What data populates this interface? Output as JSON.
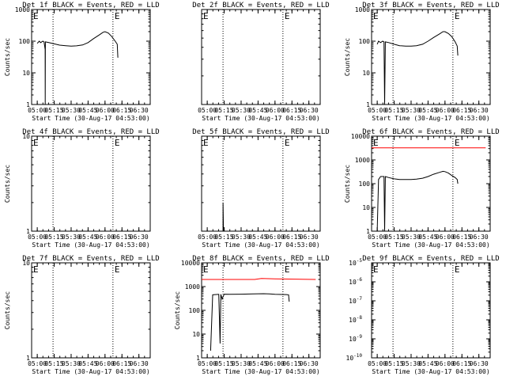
{
  "figure": {
    "xtick_labels": [
      "05:00",
      "05:15",
      "05:30",
      "05:45",
      "06:00",
      "06:15",
      "06:30"
    ]
  },
  "chart_data": [
    {
      "type": "line",
      "title": "Det 1f BLACK = Events, RED = LLD",
      "xlabel": "Start Time (30-Aug-17 04:53:00)",
      "ylabel": "Counts/sec",
      "xlim": [
        4.917,
        6.667
      ],
      "ylog": true,
      "ylim": [
        1,
        1000
      ],
      "ytick_labels": [
        "1",
        "10",
        "100",
        "1000"
      ],
      "events_marker": "E",
      "vlines": [
        5.233,
        6.117
      ],
      "series": [
        {
          "name": "Events",
          "color": "#000000",
          "points": [
            [
              5.0,
              85
            ],
            [
              5.03,
              100
            ],
            [
              5.05,
              90
            ],
            [
              5.083,
              100
            ],
            [
              5.1,
              95
            ],
            [
              5.117,
              55
            ],
            [
              5.118,
              1
            ],
            [
              5.12,
              95
            ],
            [
              5.17,
              90
            ],
            [
              5.25,
              82
            ],
            [
              5.33,
              75
            ],
            [
              5.42,
              72
            ],
            [
              5.5,
              70
            ],
            [
              5.58,
              71
            ],
            [
              5.67,
              76
            ],
            [
              5.75,
              90
            ],
            [
              5.83,
              120
            ],
            [
              5.92,
              160
            ],
            [
              5.97,
              190
            ],
            [
              6.0,
              200
            ],
            [
              6.05,
              180
            ],
            [
              6.1,
              140
            ],
            [
              6.15,
              100
            ],
            [
              6.18,
              80
            ],
            [
              6.19,
              30
            ]
          ]
        }
      ]
    },
    {
      "type": "line",
      "title": "Det 2f BLACK = Events, RED = LLD",
      "xlabel": "Start Time (30-Aug-17 04:53:00)",
      "ylabel": "",
      "xlim": [
        4.917,
        6.667
      ],
      "ylog": true,
      "ylim": [
        1,
        10
      ],
      "ytick_labels": [],
      "events_marker": "E",
      "vlines": [
        5.233,
        6.117
      ],
      "series": []
    },
    {
      "type": "line",
      "title": "Det 3f BLACK = Events, RED = LLD",
      "xlabel": "Start Time (30-Aug-17 04:53:00)",
      "ylabel": "Counts/sec",
      "xlim": [
        4.917,
        6.667
      ],
      "ylog": true,
      "ylim": [
        1,
        1000
      ],
      "ytick_labels": [
        "1",
        "10",
        "100",
        "1000"
      ],
      "events_marker": "E",
      "vlines": [
        5.233,
        6.117
      ],
      "series": [
        {
          "name": "Events",
          "color": "#000000",
          "points": [
            [
              5.0,
              80
            ],
            [
              5.02,
              100
            ],
            [
              5.05,
              90
            ],
            [
              5.08,
              100
            ],
            [
              5.1,
              95
            ],
            [
              5.11,
              1
            ],
            [
              5.12,
              95
            ],
            [
              5.17,
              90
            ],
            [
              5.25,
              80
            ],
            [
              5.33,
              72
            ],
            [
              5.42,
              70
            ],
            [
              5.5,
              70
            ],
            [
              5.58,
              72
            ],
            [
              5.67,
              80
            ],
            [
              5.75,
              100
            ],
            [
              5.83,
              130
            ],
            [
              5.92,
              170
            ],
            [
              5.97,
              200
            ],
            [
              6.0,
              200
            ],
            [
              6.05,
              175
            ],
            [
              6.1,
              140
            ],
            [
              6.15,
              95
            ],
            [
              6.18,
              70
            ],
            [
              6.19,
              35
            ]
          ]
        }
      ]
    },
    {
      "type": "line",
      "title": "Det 4f BLACK = Events, RED = LLD",
      "xlabel": "Start Time (30-Aug-17 04:53:00)",
      "ylabel": "Counts/sec",
      "xlim": [
        4.917,
        6.667
      ],
      "ylog": true,
      "ylim": [
        1,
        10
      ],
      "ytick_labels": [
        "1",
        "10"
      ],
      "events_marker": "E",
      "vlines": [
        5.233,
        6.117
      ],
      "series": []
    },
    {
      "type": "line",
      "title": "Det 5f BLACK = Events, RED = LLD",
      "xlabel": "Start Time (30-Aug-17 04:53:00)",
      "ylabel": "",
      "xlim": [
        4.917,
        6.667
      ],
      "ylog": true,
      "ylim": [
        1,
        10
      ],
      "ytick_labels": [],
      "events_marker": "E",
      "vlines": [
        5.233,
        6.117
      ],
      "series": [
        {
          "name": "Events",
          "color": "#000000",
          "points": [
            [
              5.233,
              1
            ],
            [
              5.233,
              2
            ],
            [
              5.24,
              1
            ]
          ]
        }
      ]
    },
    {
      "type": "line",
      "title": "Det 6f BLACK = Events, RED = LLD",
      "xlabel": "Start Time (30-Aug-17 04:53:00)",
      "ylabel": "Counts/sec",
      "xlim": [
        4.917,
        6.667
      ],
      "ylog": true,
      "ylim": [
        1,
        10000
      ],
      "ytick_labels": [
        "1",
        "10",
        "100",
        "1000",
        "10000"
      ],
      "events_marker": "E",
      "vlines": [
        5.233,
        6.117
      ],
      "series": [
        {
          "name": "LLD",
          "color": "#ff0000",
          "points": [
            [
              4.917,
              3200
            ],
            [
              6.6,
              3200
            ]
          ]
        },
        {
          "name": "Events",
          "color": "#000000",
          "points": [
            [
              5.0,
              1
            ],
            [
              5.02,
              150
            ],
            [
              5.05,
              200
            ],
            [
              5.1,
              200
            ],
            [
              5.11,
              1
            ],
            [
              5.12,
              200
            ],
            [
              5.17,
              180
            ],
            [
              5.25,
              160
            ],
            [
              5.33,
              150
            ],
            [
              5.42,
              150
            ],
            [
              5.5,
              150
            ],
            [
              5.58,
              155
            ],
            [
              5.67,
              170
            ],
            [
              5.75,
              200
            ],
            [
              5.83,
              250
            ],
            [
              5.92,
              300
            ],
            [
              5.97,
              330
            ],
            [
              6.0,
              320
            ],
            [
              6.05,
              280
            ],
            [
              6.1,
              220
            ],
            [
              6.15,
              180
            ],
            [
              6.18,
              150
            ],
            [
              6.19,
              100
            ]
          ]
        }
      ]
    },
    {
      "type": "line",
      "title": "Det 7f BLACK = Events, RED = LLD",
      "xlabel": "Start Time (30-Aug-17 04:53:00)",
      "ylabel": "Counts/sec",
      "xlim": [
        4.917,
        6.667
      ],
      "ylog": true,
      "ylim": [
        1,
        10
      ],
      "ytick_labels": [
        "1",
        "10"
      ],
      "events_marker": "E",
      "vlines": [
        5.233,
        6.117
      ],
      "series": []
    },
    {
      "type": "line",
      "title": "Det 8f BLACK = Events, RED = LLD",
      "xlabel": "Start Time (30-Aug-17 04:53:00)",
      "ylabel": "Counts/sec",
      "xlim": [
        4.917,
        6.667
      ],
      "ylog": true,
      "ylim": [
        1,
        10000
      ],
      "ytick_labels": [
        "1",
        "10",
        "100",
        "1000",
        "10000"
      ],
      "events_marker": "E",
      "vlines": [
        5.233,
        6.117
      ],
      "series": [
        {
          "name": "LLD",
          "color": "#ff0000",
          "points": [
            [
              4.917,
              2000
            ],
            [
              5.7,
              2000
            ],
            [
              5.8,
              2200
            ],
            [
              6.0,
              2100
            ],
            [
              6.6,
              2000
            ]
          ]
        },
        {
          "name": "Events",
          "color": "#000000",
          "points": [
            [
              5.05,
              2
            ],
            [
              5.08,
              450
            ],
            [
              5.17,
              470
            ],
            [
              5.19,
              4
            ],
            [
              5.2,
              470
            ],
            [
              5.22,
              300
            ],
            [
              5.25,
              480
            ],
            [
              5.33,
              470
            ],
            [
              5.5,
              480
            ],
            [
              5.67,
              490
            ],
            [
              5.83,
              500
            ],
            [
              5.92,
              490
            ],
            [
              6.0,
              470
            ],
            [
              6.17,
              460
            ],
            [
              6.2,
              450
            ],
            [
              6.21,
              230
            ]
          ]
        }
      ]
    },
    {
      "type": "line",
      "title": "Det 9f BLACK = Events, RED = LLD",
      "xlabel": "Start Time (30-Aug-17 04:53:00)",
      "ylabel": "",
      "xlim": [
        4.917,
        6.667
      ],
      "ylog": true,
      "ylim": [
        1e-10,
        1e-05
      ],
      "ytick_labels": [
        "10^-10",
        "10^-9",
        "10^-8",
        "10^-7",
        "10^-6",
        "10^-5"
      ],
      "events_marker": "E",
      "vlines": [
        5.233,
        6.117
      ],
      "series": []
    }
  ]
}
